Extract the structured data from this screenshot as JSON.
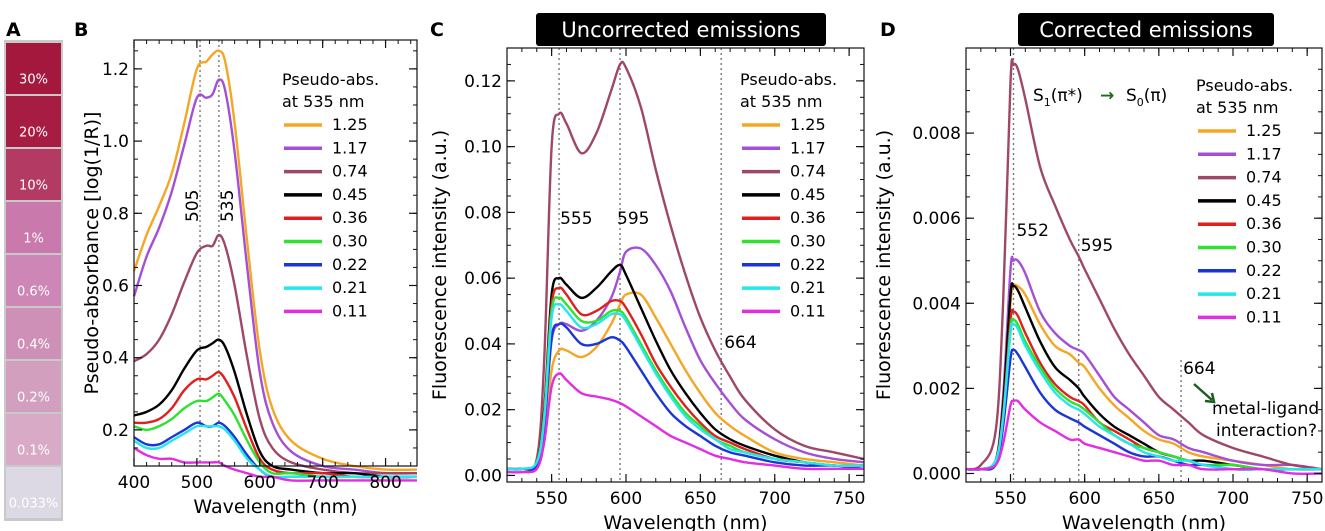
{
  "panels": {
    "a": {
      "letter": "A"
    },
    "b": {
      "letter": "B"
    },
    "c": {
      "letter": "C",
      "title": "Uncorrected emissions"
    },
    "d": {
      "letter": "D",
      "title": "Corrected emissions"
    }
  },
  "swatches": [
    {
      "label": "30%",
      "color": "#a3183c",
      "label_color": "#ffffff"
    },
    {
      "label": "20%",
      "color": "#a61c42",
      "label_color": "#ffffff"
    },
    {
      "label": "10%",
      "color": "#b33a63",
      "label_color": "#ffffff"
    },
    {
      "label": "1%",
      "color": "#c979ac",
      "label_color": "#ffffff"
    },
    {
      "label": "0.6%",
      "color": "#cd86b5",
      "label_color": "#222222"
    },
    {
      "label": "0.4%",
      "color": "#cf90b8",
      "label_color": "#222222"
    },
    {
      "label": "0.2%",
      "color": "#d39fbf",
      "label_color": "#222222"
    },
    {
      "label": "0.1%",
      "color": "#d8aac5",
      "label_color": "#222222"
    },
    {
      "label": "0.033%",
      "color": "#dcd8e4",
      "label_color": "#222222"
    }
  ],
  "legend": {
    "title_line1": "Pseudo-abs.",
    "title_line2": "at 535 nm",
    "entries": [
      {
        "label": "1.25",
        "color": "#f5a623"
      },
      {
        "label": "1.17",
        "color": "#a34fd6"
      },
      {
        "label": "0.74",
        "color": "#9e4866"
      },
      {
        "label": "0.45",
        "color": "#000000"
      },
      {
        "label": "0.36",
        "color": "#e01f1f"
      },
      {
        "label": "0.30",
        "color": "#2ee22e"
      },
      {
        "label": "0.22",
        "color": "#1a36d6"
      },
      {
        "label": "0.21",
        "color": "#25e6ea"
      },
      {
        "label": "0.11",
        "color": "#e22de2"
      }
    ]
  },
  "annotations": {
    "b_505": "505",
    "b_535": "535",
    "c_555": "555",
    "c_595": "595",
    "c_664": "664",
    "d_552": "552",
    "d_595": "595",
    "d_664": "664",
    "d_transition_left": "S",
    "d_transition_sub1": "1",
    "d_transition_pi1": "(π*)",
    "d_transition_arrow": "→",
    "d_transition_s0": "S",
    "d_transition_sub0": "0",
    "d_transition_pi0": "(π)",
    "d_metal_line1": "metal-ligand",
    "d_metal_line2": "interaction?"
  },
  "chart_data": [
    {
      "type": "line",
      "id": "B",
      "xlabel": "Wavelength (nm)",
      "ylabel": "Pseudo-absorbance [log(1/R)]",
      "xlim": [
        400,
        850
      ],
      "ylim": [
        0.1,
        1.28
      ],
      "xticks": [
        400,
        500,
        600,
        700,
        800
      ],
      "yticks": [
        0.2,
        0.4,
        0.6,
        0.8,
        1.0,
        1.2
      ],
      "ytick_labels": [
        "0.2",
        "0.4",
        "0.6",
        "0.8",
        "1.0",
        "1.2"
      ],
      "vlines": [
        505,
        535
      ],
      "x": [
        400,
        420,
        440,
        460,
        480,
        500,
        515,
        525,
        535,
        545,
        560,
        580,
        600,
        620,
        650,
        700,
        750,
        800,
        850
      ],
      "series": [
        {
          "name": "1.25",
          "values": [
            0.64,
            0.74,
            0.82,
            0.91,
            1.05,
            1.2,
            1.22,
            1.24,
            1.25,
            1.22,
            1.05,
            0.72,
            0.42,
            0.26,
            0.17,
            0.12,
            0.1,
            0.09,
            0.09
          ]
        },
        {
          "name": "1.17",
          "values": [
            0.57,
            0.68,
            0.76,
            0.86,
            0.99,
            1.12,
            1.12,
            1.13,
            1.17,
            1.14,
            0.97,
            0.65,
            0.36,
            0.22,
            0.14,
            0.1,
            0.09,
            0.08,
            0.08
          ]
        },
        {
          "name": "0.74",
          "values": [
            0.39,
            0.41,
            0.45,
            0.52,
            0.61,
            0.69,
            0.71,
            0.71,
            0.74,
            0.71,
            0.6,
            0.4,
            0.23,
            0.15,
            0.11,
            0.09,
            0.08,
            0.08,
            0.08
          ]
        },
        {
          "name": "0.45",
          "values": [
            0.24,
            0.25,
            0.27,
            0.31,
            0.37,
            0.42,
            0.43,
            0.44,
            0.45,
            0.43,
            0.36,
            0.24,
            0.14,
            0.1,
            0.09,
            0.08,
            0.08,
            0.07,
            0.07
          ]
        },
        {
          "name": "0.36",
          "values": [
            0.22,
            0.22,
            0.23,
            0.26,
            0.31,
            0.34,
            0.34,
            0.35,
            0.36,
            0.34,
            0.29,
            0.2,
            0.12,
            0.09,
            0.08,
            0.08,
            0.07,
            0.07,
            0.07
          ]
        },
        {
          "name": "0.30",
          "values": [
            0.21,
            0.2,
            0.21,
            0.23,
            0.26,
            0.28,
            0.28,
            0.29,
            0.3,
            0.28,
            0.24,
            0.17,
            0.11,
            0.08,
            0.08,
            0.07,
            0.07,
            0.07,
            0.07
          ]
        },
        {
          "name": "0.22",
          "values": [
            0.18,
            0.16,
            0.16,
            0.18,
            0.2,
            0.22,
            0.21,
            0.21,
            0.22,
            0.21,
            0.18,
            0.13,
            0.09,
            0.07,
            0.07,
            0.07,
            0.07,
            0.07,
            0.07
          ]
        },
        {
          "name": "0.21",
          "values": [
            0.17,
            0.15,
            0.15,
            0.17,
            0.19,
            0.21,
            0.21,
            0.21,
            0.21,
            0.2,
            0.17,
            0.12,
            0.09,
            0.07,
            0.07,
            0.07,
            0.07,
            0.07,
            0.07
          ]
        },
        {
          "name": "0.11",
          "values": [
            0.15,
            0.13,
            0.12,
            0.12,
            0.11,
            0.11,
            0.11,
            0.11,
            0.11,
            0.1,
            0.09,
            0.08,
            0.07,
            0.07,
            0.06,
            0.06,
            0.06,
            0.06,
            0.06
          ]
        }
      ]
    },
    {
      "type": "line",
      "id": "C",
      "xlabel": "Wavelength (nm)",
      "ylabel": "Fluorescence intensity (a.u.)",
      "xlim": [
        520,
        760
      ],
      "ylim": [
        -0.002,
        0.13
      ],
      "xticks": [
        550,
        600,
        650,
        700,
        750
      ],
      "yticks": [
        0.0,
        0.02,
        0.04,
        0.06,
        0.08,
        0.1,
        0.12
      ],
      "ytick_labels": [
        "0.00",
        "0.02",
        "0.04",
        "0.06",
        "0.08",
        "0.10",
        "0.12"
      ],
      "vlines": [
        555,
        596,
        664
      ],
      "x": [
        520,
        530,
        540,
        545,
        550,
        555,
        560,
        570,
        580,
        590,
        596,
        600,
        610,
        620,
        630,
        640,
        650,
        660,
        670,
        680,
        700,
        720,
        740,
        760
      ],
      "series": [
        {
          "name": "1.25",
          "values": [
            0.002,
            0.002,
            0.003,
            0.012,
            0.032,
            0.038,
            0.038,
            0.036,
            0.039,
            0.046,
            0.052,
            0.055,
            0.055,
            0.048,
            0.04,
            0.032,
            0.025,
            0.019,
            0.015,
            0.012,
            0.007,
            0.005,
            0.004,
            0.003
          ]
        },
        {
          "name": "1.17",
          "values": [
            0.002,
            0.002,
            0.003,
            0.015,
            0.041,
            0.046,
            0.046,
            0.044,
            0.047,
            0.054,
            0.062,
            0.068,
            0.069,
            0.064,
            0.056,
            0.045,
            0.035,
            0.028,
            0.022,
            0.017,
            0.011,
            0.007,
            0.005,
            0.004
          ]
        },
        {
          "name": "0.74",
          "values": [
            0.002,
            0.002,
            0.005,
            0.035,
            0.1,
            0.11,
            0.107,
            0.098,
            0.104,
            0.117,
            0.125,
            0.124,
            0.112,
            0.093,
            0.076,
            0.061,
            0.048,
            0.038,
            0.03,
            0.023,
            0.014,
            0.009,
            0.007,
            0.005
          ]
        },
        {
          "name": "0.45",
          "values": [
            0.002,
            0.002,
            0.004,
            0.02,
            0.055,
            0.06,
            0.058,
            0.054,
            0.057,
            0.062,
            0.064,
            0.061,
            0.051,
            0.041,
            0.032,
            0.025,
            0.019,
            0.014,
            0.011,
            0.009,
            0.006,
            0.004,
            0.003,
            0.003
          ]
        },
        {
          "name": "0.36",
          "values": [
            0.002,
            0.002,
            0.004,
            0.019,
            0.052,
            0.057,
            0.055,
            0.049,
            0.05,
            0.053,
            0.053,
            0.051,
            0.043,
            0.034,
            0.027,
            0.021,
            0.016,
            0.012,
            0.01,
            0.008,
            0.005,
            0.004,
            0.003,
            0.003
          ]
        },
        {
          "name": "0.30",
          "values": [
            0.002,
            0.002,
            0.004,
            0.018,
            0.05,
            0.054,
            0.052,
            0.047,
            0.047,
            0.05,
            0.05,
            0.048,
            0.04,
            0.032,
            0.025,
            0.019,
            0.015,
            0.011,
            0.009,
            0.007,
            0.005,
            0.004,
            0.003,
            0.003
          ]
        },
        {
          "name": "0.22",
          "values": [
            0.002,
            0.002,
            0.003,
            0.015,
            0.042,
            0.046,
            0.045,
            0.04,
            0.04,
            0.042,
            0.041,
            0.039,
            0.032,
            0.025,
            0.019,
            0.015,
            0.012,
            0.009,
            0.007,
            0.006,
            0.004,
            0.003,
            0.003,
            0.002
          ]
        },
        {
          "name": "0.21",
          "values": [
            0.002,
            0.002,
            0.004,
            0.017,
            0.048,
            0.052,
            0.05,
            0.045,
            0.046,
            0.049,
            0.049,
            0.047,
            0.039,
            0.031,
            0.024,
            0.018,
            0.014,
            0.011,
            0.008,
            0.007,
            0.005,
            0.004,
            0.003,
            0.003
          ]
        },
        {
          "name": "0.11",
          "values": [
            0.001,
            0.001,
            0.002,
            0.01,
            0.027,
            0.031,
            0.029,
            0.025,
            0.024,
            0.023,
            0.022,
            0.021,
            0.018,
            0.015,
            0.012,
            0.01,
            0.008,
            0.006,
            0.005,
            0.004,
            0.003,
            0.002,
            0.002,
            0.002
          ]
        }
      ]
    },
    {
      "type": "line",
      "id": "D",
      "xlabel": "Wavelength (nm)",
      "ylabel": "Fluorescence intensity (a.u.)",
      "xlim": [
        520,
        760
      ],
      "ylim": [
        -0.0002,
        0.01
      ],
      "xticks": [
        550,
        600,
        650,
        700,
        750
      ],
      "yticks": [
        0.0,
        0.002,
        0.004,
        0.006,
        0.008
      ],
      "ytick_labels": [
        "0.000",
        "0.002",
        "0.004",
        "0.006",
        "0.008"
      ],
      "vlines": [
        552,
        596,
        665
      ],
      "x": [
        520,
        530,
        540,
        545,
        550,
        552,
        555,
        560,
        570,
        580,
        590,
        596,
        600,
        610,
        620,
        630,
        640,
        650,
        660,
        670,
        680,
        700,
        720,
        740,
        760
      ],
      "series": [
        {
          "name": "1.25",
          "values": [
            0.0001,
            0.0001,
            0.0003,
            0.0015,
            0.004,
            0.0044,
            0.0044,
            0.0042,
            0.0035,
            0.003,
            0.0028,
            0.0026,
            0.0025,
            0.002,
            0.0016,
            0.0013,
            0.001,
            0.0008,
            0.0007,
            0.0005,
            0.0004,
            0.0003,
            0.0002,
            0.0001,
            0.0001
          ]
        },
        {
          "name": "1.17",
          "values": [
            0.0001,
            0.0001,
            0.0003,
            0.0018,
            0.0048,
            0.005,
            0.005,
            0.0047,
            0.0038,
            0.0033,
            0.003,
            0.0029,
            0.0028,
            0.0023,
            0.0018,
            0.0015,
            0.0012,
            0.0009,
            0.0008,
            0.0006,
            0.0005,
            0.0003,
            0.0002,
            0.0002,
            0.0001
          ]
        },
        {
          "name": "0.74",
          "values": [
            0.0001,
            0.0002,
            0.001,
            0.004,
            0.0092,
            0.0096,
            0.0095,
            0.0088,
            0.0072,
            0.0063,
            0.0055,
            0.0051,
            0.0048,
            0.0041,
            0.0034,
            0.0028,
            0.0023,
            0.0018,
            0.0015,
            0.0012,
            0.0009,
            0.0006,
            0.0004,
            0.0002,
            0.0001
          ]
        },
        {
          "name": "0.45",
          "values": [
            0.0001,
            0.0001,
            0.0003,
            0.0016,
            0.0042,
            0.0044,
            0.0043,
            0.0039,
            0.0031,
            0.0025,
            0.0022,
            0.002,
            0.0018,
            0.0014,
            0.0011,
            0.0009,
            0.0007,
            0.0005,
            0.0004,
            0.0003,
            0.0003,
            0.0002,
            0.0001,
            0.0001,
            0.0001
          ]
        },
        {
          "name": "0.36",
          "values": [
            0.0001,
            0.0001,
            0.0003,
            0.0014,
            0.0036,
            0.0038,
            0.0037,
            0.0033,
            0.0026,
            0.0021,
            0.0018,
            0.0017,
            0.0016,
            0.0012,
            0.001,
            0.0008,
            0.0006,
            0.0005,
            0.0004,
            0.0003,
            0.0002,
            0.0002,
            0.0001,
            0.0001,
            0.0001
          ]
        },
        {
          "name": "0.30",
          "values": [
            0.0001,
            0.0001,
            0.0003,
            0.0013,
            0.0034,
            0.0036,
            0.0035,
            0.0031,
            0.0025,
            0.002,
            0.0017,
            0.0016,
            0.0015,
            0.0012,
            0.0009,
            0.0007,
            0.0006,
            0.0005,
            0.0004,
            0.0003,
            0.0002,
            0.0002,
            0.0001,
            0.0001,
            0.0001
          ]
        },
        {
          "name": "0.22",
          "values": [
            0.0001,
            0.0001,
            0.0002,
            0.0011,
            0.0027,
            0.0029,
            0.0028,
            0.0025,
            0.0019,
            0.0015,
            0.0013,
            0.0012,
            0.0011,
            0.0009,
            0.0007,
            0.0005,
            0.0004,
            0.0004,
            0.0003,
            0.0002,
            0.0002,
            0.0001,
            0.0001,
            0.0001,
            0.0001
          ]
        },
        {
          "name": "0.21",
          "values": [
            0.0001,
            0.0001,
            0.0003,
            0.0013,
            0.0033,
            0.0035,
            0.0034,
            0.003,
            0.0024,
            0.0019,
            0.0016,
            0.0015,
            0.0014,
            0.0011,
            0.0009,
            0.0007,
            0.0005,
            0.0004,
            0.0003,
            0.0003,
            0.0002,
            0.0001,
            0.0001,
            0.0001,
            0.0001
          ]
        },
        {
          "name": "0.11",
          "values": [
            0.0001,
            0.0001,
            0.0002,
            0.0007,
            0.0016,
            0.0017,
            0.0017,
            0.0015,
            0.0012,
            0.001,
            0.0008,
            0.0008,
            0.0007,
            0.0006,
            0.0005,
            0.0004,
            0.0003,
            0.0003,
            0.0002,
            0.0002,
            0.0001,
            0.0001,
            0.0001,
            0.0,
            0.0
          ]
        }
      ]
    }
  ]
}
